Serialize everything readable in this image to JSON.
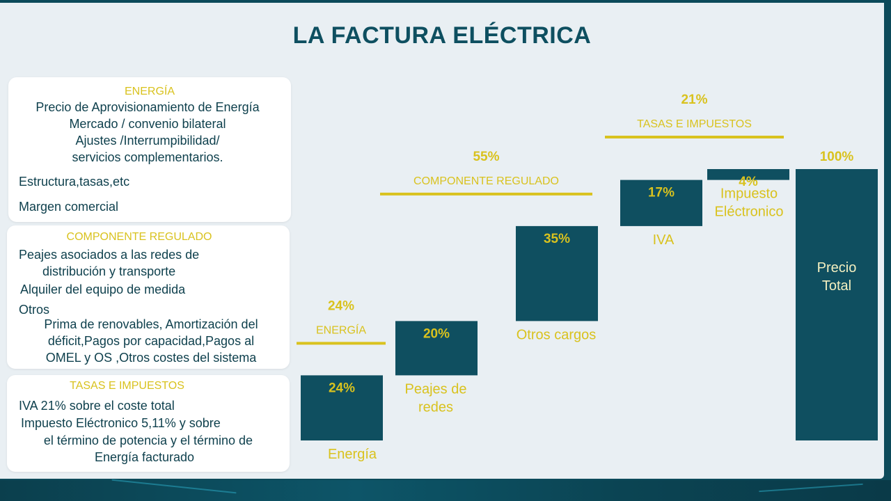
{
  "title": "LA FACTURA ELÉCTRICA",
  "colors": {
    "bar": "#0f4f60",
    "accent": "#d9c21e",
    "text": "#0d3f4c",
    "background": "#e9eff3"
  },
  "cards": {
    "energia": {
      "heading": "ENERGÍA",
      "lines": [
        "Precio de Aprovisionamiento de Energía",
        "Mercado / convenio bilateral",
        "Ajustes /Interrumpibilidad/",
        "servicios complementarios.",
        "Estructura,tasas,etc",
        "Margen comercial"
      ]
    },
    "regulado": {
      "heading": "COMPONENTE REGULADO",
      "lines": [
        "Peajes asociados a las redes de",
        "distribución y transporte",
        "Alquiler del equipo de medida",
        "Otros",
        "Prima de renovables, Amortización  del",
        "déficit,Pagos por capacidad,Pagos al",
        "OMEL y OS ,Otros costes del sistema"
      ]
    },
    "tasas": {
      "heading": "TASAS E IMPUESTOS",
      "lines": [
        "IVA 21% sobre el coste total",
        "Impuesto Eléctronico 5,11% y sobre",
        "el término de potencia y el término de",
        "Energía facturado"
      ]
    }
  },
  "chart_data": {
    "type": "bar",
    "subtype": "waterfall",
    "unit": "%",
    "ylim": [
      0,
      100
    ],
    "bars": [
      {
        "label": [
          "Energía"
        ],
        "value": 24,
        "value_label": "24%"
      },
      {
        "label": [
          "Peajes de",
          "redes"
        ],
        "value": 20,
        "value_label": "20%"
      },
      {
        "label": [
          "Otros cargos"
        ],
        "value": 35,
        "value_label": "35%"
      },
      {
        "label": [
          "IVA"
        ],
        "value": 17,
        "value_label": "17%"
      },
      {
        "label": [
          "Impuesto",
          "Eléctronico"
        ],
        "value": 4,
        "value_label": "4%"
      },
      {
        "label": [
          "Precio",
          "Total"
        ],
        "value": 100,
        "value_label": "100%",
        "total": true
      }
    ],
    "groups": [
      {
        "name": "ENERGÍA",
        "value_label": "24%",
        "bars": [
          0,
          0
        ]
      },
      {
        "name": "COMPONENTE REGULADO",
        "value_label": "55%",
        "bars": [
          1,
          2
        ]
      },
      {
        "name": "TASAS E IMPUESTOS",
        "value_label": "21%",
        "bars": [
          3,
          4
        ]
      }
    ]
  }
}
